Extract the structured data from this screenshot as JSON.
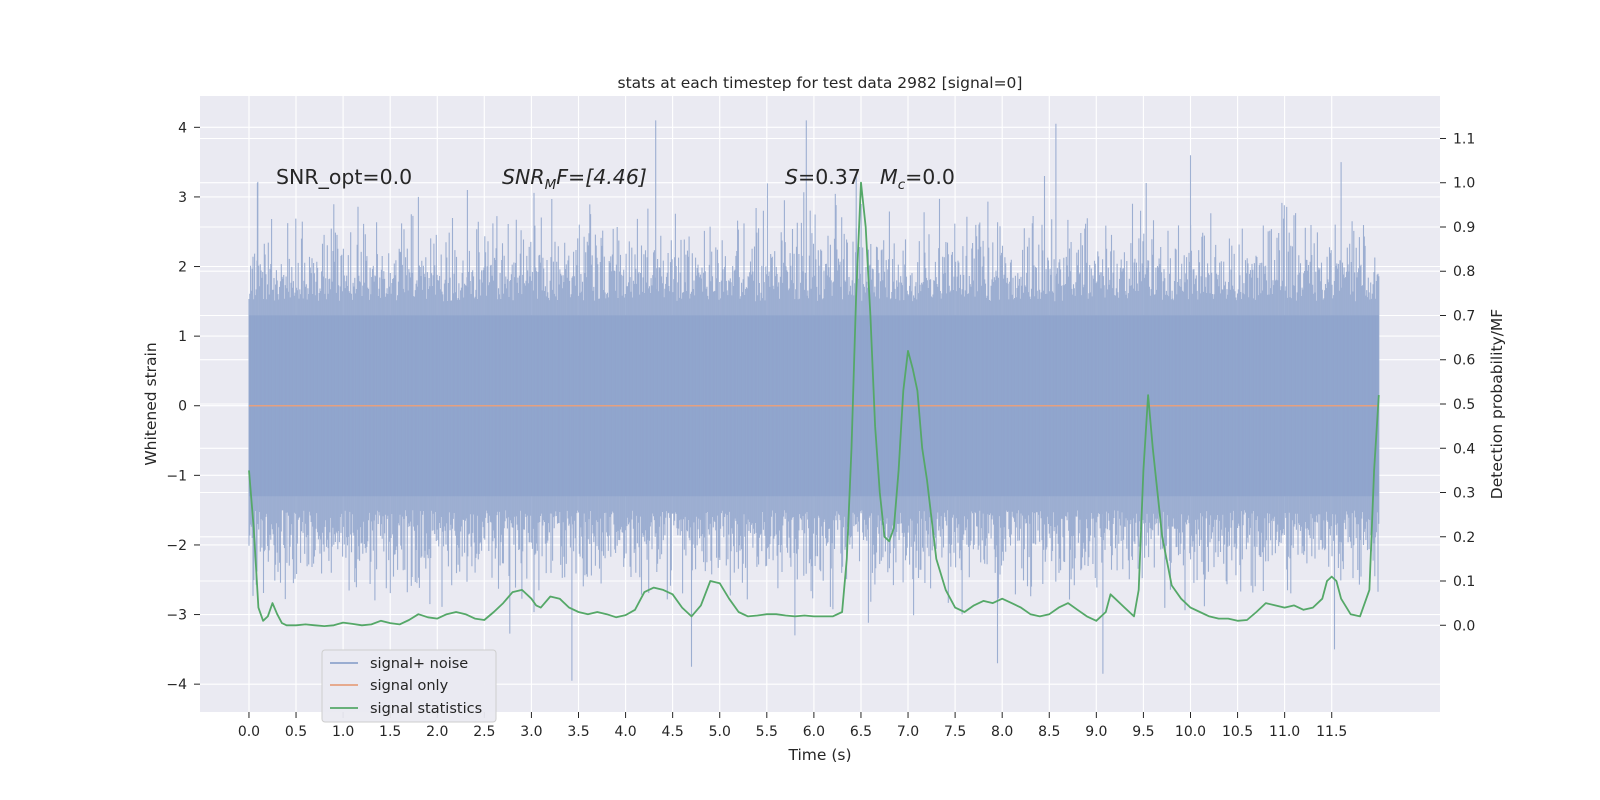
{
  "chart_data": {
    "type": "line",
    "title": "stats at each timestep for test data 2982 [signal=0]",
    "xlabel": "Time (s)",
    "ylabel_left": "Whitened strain",
    "ylabel_right": "Detection probability/MF",
    "xlim": [
      -0.52,
      12.65
    ],
    "ylim_left": [
      -4.4,
      4.45
    ],
    "ylim_right": [
      -0.196,
      1.196
    ],
    "x_ticks": [
      0.0,
      0.5,
      1.0,
      1.5,
      2.0,
      2.5,
      3.0,
      3.5,
      4.0,
      4.5,
      5.0,
      5.5,
      6.0,
      6.5,
      7.0,
      7.5,
      8.0,
      8.5,
      9.0,
      9.5,
      10.0,
      10.5,
      11.0,
      11.5
    ],
    "x_tick_labels": [
      "0.0",
      "0.5",
      "1.0",
      "1.5",
      "2.0",
      "2.5",
      "3.0",
      "3.5",
      "4.0",
      "4.5",
      "5.0",
      "5.5",
      "6.0",
      "6.5",
      "7.0",
      "7.5",
      "8.0",
      "8.5",
      "9.0",
      "9.5",
      "10.0",
      "10.5",
      "11.0",
      "11.5"
    ],
    "y_left_ticks": [
      -4,
      -3,
      -2,
      -1,
      0,
      1,
      2,
      3,
      4
    ],
    "y_left_tick_labels": [
      "−4",
      "−3",
      "−2",
      "−1",
      "0",
      "1",
      "2",
      "3",
      "4"
    ],
    "y_right_ticks": [
      0.0,
      0.1,
      0.2,
      0.3,
      0.4,
      0.5,
      0.6,
      0.7,
      0.8,
      0.9,
      1.0,
      1.1
    ],
    "y_right_tick_labels": [
      "0.0",
      "0.1",
      "0.2",
      "0.3",
      "0.4",
      "0.5",
      "0.6",
      "0.7",
      "0.8",
      "0.9",
      "1.0",
      "1.1"
    ],
    "grid": true,
    "legend_position": "lower-left",
    "annotations": {
      "snr_opt": "SNR_opt=0.0",
      "snr_mf_base": "SNR",
      "snr_mf_sub": "M",
      "snr_mf_rest": "F=[4.46]",
      "s_var": "S",
      "s_val": "=0.37",
      "mc_var": "M",
      "mc_sub": "c",
      "mc_val": "=0.0"
    },
    "series": [
      {
        "name": "signal+ noise",
        "color": "#8fa4cc",
        "axis": "left",
        "x_range": [
          0.0,
          12.0
        ],
        "note_shape": "dense whitened noise band",
        "core_band": [
          -1.3,
          1.3
        ],
        "typical_envelope": [
          -2.5,
          2.5
        ],
        "spikes": [
          {
            "x": 4.32,
            "y": 4.1
          },
          {
            "x": 5.92,
            "y": 4.1
          },
          {
            "x": 8.57,
            "y": 4.05
          },
          {
            "x": 3.43,
            "y": -3.95
          },
          {
            "x": 4.7,
            "y": -3.75
          },
          {
            "x": 7.95,
            "y": -3.7
          },
          {
            "x": 9.07,
            "y": -3.85
          },
          {
            "x": 11.53,
            "y": -3.5
          },
          {
            "x": 10.0,
            "y": 3.6
          },
          {
            "x": 11.6,
            "y": 3.5
          },
          {
            "x": 0.09,
            "y": 3.2
          },
          {
            "x": 1.8,
            "y": 3.0
          },
          {
            "x": 6.45,
            "y": 3.3
          },
          {
            "x": 2.32,
            "y": 3.1
          },
          {
            "x": 9.53,
            "y": 3.2
          }
        ]
      },
      {
        "name": "signal only",
        "color": "#e5a07f",
        "axis": "left",
        "x": [
          0.0,
          12.0
        ],
        "y": [
          0.0,
          0.0
        ]
      },
      {
        "name": "signal statistics",
        "color": "#55a868",
        "axis": "right",
        "x": [
          0.0,
          0.05,
          0.1,
          0.15,
          0.2,
          0.25,
          0.3,
          0.35,
          0.4,
          0.45,
          0.5,
          0.6,
          0.7,
          0.8,
          0.9,
          1.0,
          1.1,
          1.2,
          1.3,
          1.4,
          1.5,
          1.6,
          1.7,
          1.8,
          1.9,
          2.0,
          2.1,
          2.2,
          2.3,
          2.4,
          2.5,
          2.6,
          2.7,
          2.8,
          2.9,
          3.0,
          3.05,
          3.1,
          3.2,
          3.3,
          3.4,
          3.5,
          3.6,
          3.7,
          3.8,
          3.9,
          4.0,
          4.1,
          4.2,
          4.3,
          4.4,
          4.5,
          4.6,
          4.7,
          4.8,
          4.9,
          5.0,
          5.1,
          5.2,
          5.3,
          5.4,
          5.5,
          5.6,
          5.7,
          5.8,
          5.9,
          6.0,
          6.1,
          6.2,
          6.3,
          6.35,
          6.4,
          6.45,
          6.5,
          6.55,
          6.6,
          6.65,
          6.7,
          6.75,
          6.8,
          6.85,
          6.9,
          6.95,
          7.0,
          7.05,
          7.1,
          7.15,
          7.2,
          7.3,
          7.4,
          7.5,
          7.6,
          7.7,
          7.8,
          7.9,
          8.0,
          8.1,
          8.2,
          8.3,
          8.4,
          8.5,
          8.6,
          8.7,
          8.8,
          8.9,
          9.0,
          9.1,
          9.15,
          9.2,
          9.3,
          9.4,
          9.45,
          9.5,
          9.55,
          9.6,
          9.65,
          9.7,
          9.8,
          9.9,
          10.0,
          10.1,
          10.2,
          10.3,
          10.4,
          10.5,
          10.6,
          10.7,
          10.8,
          10.9,
          11.0,
          11.1,
          11.2,
          11.3,
          11.4,
          11.45,
          11.5,
          11.55,
          11.6,
          11.7,
          11.8,
          11.9,
          11.95,
          12.0
        ],
        "y": [
          0.35,
          0.22,
          0.04,
          0.01,
          0.02,
          0.05,
          0.025,
          0.005,
          0.0,
          0.0,
          0.0,
          0.002,
          0.0,
          -0.002,
          0.0,
          0.006,
          0.003,
          0.0,
          0.002,
          0.01,
          0.005,
          0.002,
          0.012,
          0.025,
          0.018,
          0.015,
          0.025,
          0.03,
          0.025,
          0.015,
          0.012,
          0.03,
          0.05,
          0.075,
          0.08,
          0.06,
          0.045,
          0.04,
          0.065,
          0.06,
          0.04,
          0.03,
          0.025,
          0.03,
          0.025,
          0.018,
          0.023,
          0.035,
          0.075,
          0.085,
          0.08,
          0.07,
          0.04,
          0.02,
          0.045,
          0.1,
          0.095,
          0.06,
          0.03,
          0.02,
          0.022,
          0.025,
          0.025,
          0.022,
          0.02,
          0.022,
          0.02,
          0.02,
          0.02,
          0.03,
          0.15,
          0.4,
          0.75,
          1.0,
          0.9,
          0.7,
          0.45,
          0.3,
          0.2,
          0.19,
          0.22,
          0.35,
          0.53,
          0.62,
          0.58,
          0.53,
          0.4,
          0.33,
          0.15,
          0.08,
          0.04,
          0.03,
          0.045,
          0.055,
          0.05,
          0.06,
          0.05,
          0.04,
          0.025,
          0.02,
          0.025,
          0.04,
          0.05,
          0.035,
          0.02,
          0.01,
          0.03,
          0.07,
          0.06,
          0.04,
          0.02,
          0.08,
          0.35,
          0.52,
          0.4,
          0.3,
          0.2,
          0.09,
          0.06,
          0.04,
          0.03,
          0.02,
          0.015,
          0.015,
          0.01,
          0.012,
          0.03,
          0.05,
          0.045,
          0.04,
          0.045,
          0.035,
          0.04,
          0.06,
          0.1,
          0.11,
          0.1,
          0.06,
          0.025,
          0.02,
          0.08,
          0.35,
          0.52
        ]
      }
    ]
  }
}
